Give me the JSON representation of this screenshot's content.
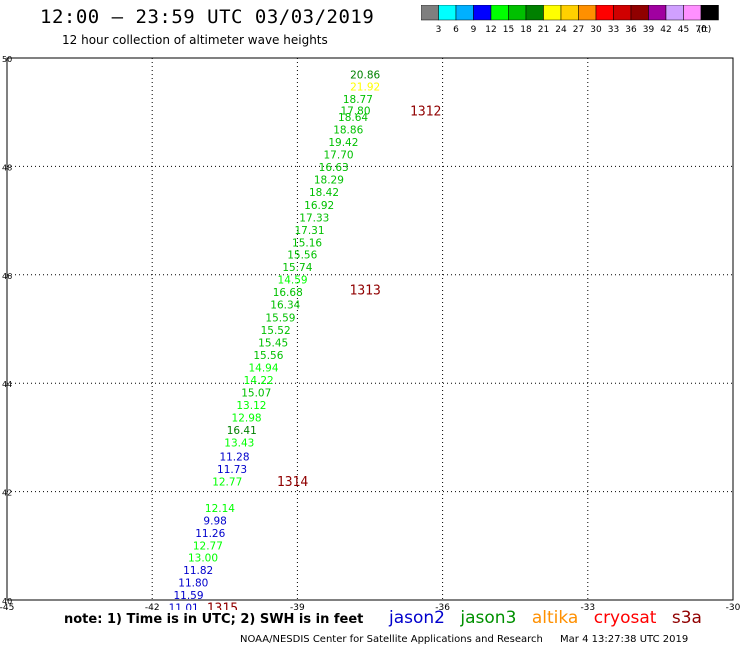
{
  "title": "12:00 – 23:59 UTC 03/03/2019",
  "subtitle": "12 hour collection of altimeter wave heights",
  "colorbar": {
    "labels": [
      "3",
      "6",
      "9",
      "12",
      "15",
      "18",
      "21",
      "24",
      "27",
      "30",
      "33",
      "36",
      "39",
      "42",
      "45",
      "70"
    ],
    "unit": "(ft)",
    "colors": [
      "#7f7f7f",
      "#00ffff",
      "#00b0ff",
      "#0000ff",
      "#00ff00",
      "#00c000",
      "#008000",
      "#ffff00",
      "#ffd000",
      "#ff9000",
      "#ff0000",
      "#d00000",
      "#900000",
      "#a000a0",
      "#d0a0ff",
      "#ff90ff",
      "#000000"
    ]
  },
  "note": "note:  1) Time is in UTC;  2) SWH is in feet",
  "legend": [
    {
      "name": "jason2",
      "color": "#0000cc"
    },
    {
      "name": "jason3",
      "color": "#009000"
    },
    {
      "name": "altika",
      "color": "#ff9000"
    },
    {
      "name": "cryosat",
      "color": "#ff0000"
    },
    {
      "name": "s3a",
      "color": "#900000"
    }
  ],
  "footer": {
    "agency": "NOAA/NESDIS Center for Satellite Applications and Research",
    "timestamp": "Mar  4 13:27:38 UTC 2019"
  },
  "chart_data": {
    "type": "scatter",
    "xlim": [
      -45,
      -30
    ],
    "ylim": [
      40,
      50
    ],
    "xticks": [
      -45,
      -42,
      -39,
      -36,
      -33,
      -30
    ],
    "yticks": [
      40,
      42,
      44,
      46,
      48,
      50
    ],
    "grid": true,
    "points": [
      {
        "lon": -37.6,
        "lat": 49.7,
        "label": "20.86",
        "color": "#008000"
      },
      {
        "lon": -37.6,
        "lat": 49.47,
        "label": "21.92",
        "color": "#ffff00"
      },
      {
        "lon": -37.75,
        "lat": 49.24,
        "label": "18.77",
        "color": "#00c000"
      },
      {
        "lon": -37.8,
        "lat": 49.03,
        "label": "17.80",
        "color": "#00c000"
      },
      {
        "lon": -37.85,
        "lat": 48.91,
        "label": "18.64",
        "color": "#00c000"
      },
      {
        "lon": -37.95,
        "lat": 48.68,
        "label": "18.86",
        "color": "#00c000"
      },
      {
        "lon": -38.05,
        "lat": 48.45,
        "label": "19.42",
        "color": "#00c000"
      },
      {
        "lon": -38.15,
        "lat": 48.22,
        "label": "17.70",
        "color": "#00c000"
      },
      {
        "lon": -38.25,
        "lat": 47.99,
        "label": "16.63",
        "color": "#00c000"
      },
      {
        "lon": -38.35,
        "lat": 47.76,
        "label": "18.29",
        "color": "#00c000"
      },
      {
        "lon": -38.45,
        "lat": 47.53,
        "label": "18.42",
        "color": "#00c000"
      },
      {
        "lon": -38.55,
        "lat": 47.29,
        "label": "16.92",
        "color": "#00c000"
      },
      {
        "lon": -38.65,
        "lat": 47.06,
        "label": "17.33",
        "color": "#00c000"
      },
      {
        "lon": -38.75,
        "lat": 46.83,
        "label": "17.31",
        "color": "#00c000"
      },
      {
        "lon": -38.8,
        "lat": 46.6,
        "label": "15.16",
        "color": "#00c000"
      },
      {
        "lon": -38.9,
        "lat": 46.37,
        "label": "15.56",
        "color": "#00c000"
      },
      {
        "lon": -39.0,
        "lat": 46.14,
        "label": "15.74",
        "color": "#00c000"
      },
      {
        "lon": -39.1,
        "lat": 45.91,
        "label": "14.59",
        "color": "#00ff00"
      },
      {
        "lon": -39.2,
        "lat": 45.68,
        "label": "16.68",
        "color": "#00c000"
      },
      {
        "lon": -39.25,
        "lat": 45.45,
        "label": "16.34",
        "color": "#00c000"
      },
      {
        "lon": -39.35,
        "lat": 45.21,
        "label": "15.59",
        "color": "#00c000"
      },
      {
        "lon": -39.45,
        "lat": 44.98,
        "label": "15.52",
        "color": "#00c000"
      },
      {
        "lon": -39.5,
        "lat": 44.75,
        "label": "15.45",
        "color": "#00c000"
      },
      {
        "lon": -39.6,
        "lat": 44.52,
        "label": "15.56",
        "color": "#00c000"
      },
      {
        "lon": -39.7,
        "lat": 44.29,
        "label": "14.94",
        "color": "#00ff00"
      },
      {
        "lon": -39.8,
        "lat": 44.06,
        "label": "14.22",
        "color": "#00ff00"
      },
      {
        "lon": -39.85,
        "lat": 43.83,
        "label": "15.07",
        "color": "#00c000"
      },
      {
        "lon": -39.95,
        "lat": 43.6,
        "label": "13.12",
        "color": "#00ff00"
      },
      {
        "lon": -40.05,
        "lat": 43.37,
        "label": "12.98",
        "color": "#00ff00"
      },
      {
        "lon": -40.15,
        "lat": 43.14,
        "label": "16.41",
        "color": "#008000"
      },
      {
        "lon": -40.2,
        "lat": 42.91,
        "label": "13.43",
        "color": "#00ff00"
      },
      {
        "lon": -40.3,
        "lat": 42.65,
        "label": "11.28",
        "color": "#0000cc"
      },
      {
        "lon": -40.35,
        "lat": 42.42,
        "label": "11.73",
        "color": "#0000cc"
      },
      {
        "lon": -40.45,
        "lat": 42.19,
        "label": "12.77",
        "color": "#00ff00"
      },
      {
        "lon": -40.6,
        "lat": 41.7,
        "label": "12.14",
        "color": "#00ff00"
      },
      {
        "lon": -40.7,
        "lat": 41.47,
        "label": "9.98",
        "color": "#0000cc"
      },
      {
        "lon": -40.8,
        "lat": 41.24,
        "label": "11.26",
        "color": "#0000cc"
      },
      {
        "lon": -40.85,
        "lat": 41.01,
        "label": "12.77",
        "color": "#00ff00"
      },
      {
        "lon": -40.95,
        "lat": 40.78,
        "label": "13.00",
        "color": "#00ff00"
      },
      {
        "lon": -41.05,
        "lat": 40.55,
        "label": "11.82",
        "color": "#0000cc"
      },
      {
        "lon": -41.15,
        "lat": 40.32,
        "label": "11.80",
        "color": "#0000cc"
      },
      {
        "lon": -41.25,
        "lat": 40.09,
        "label": "11.59",
        "color": "#0000cc"
      },
      {
        "lon": -41.35,
        "lat": 39.86,
        "label": "11.01",
        "color": "#0000cc"
      }
    ],
    "time_labels": [
      {
        "lon": -36.35,
        "lat": 49.03,
        "label": "1312",
        "color": "#900000"
      },
      {
        "lon": -37.6,
        "lat": 45.73,
        "label": "1313",
        "color": "#900000"
      },
      {
        "lon": -39.1,
        "lat": 42.2,
        "label": "1314",
        "color": "#900000"
      },
      {
        "lon": -40.55,
        "lat": 39.86,
        "label": "1315",
        "color": "#900000"
      }
    ]
  }
}
